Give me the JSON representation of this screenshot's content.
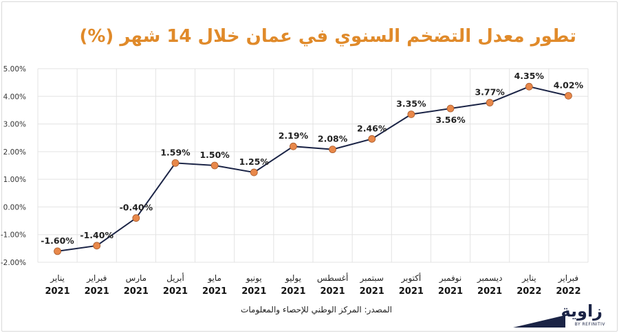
{
  "title": "تطور معدل التضخم السنوي في عمان خلال 14 شهر (%)",
  "source": "المصدر:  المركز الوطني للإحصاء والمعلومات",
  "logo": {
    "word": "زاوية",
    "sub": "BY REFINITIV"
  },
  "colors": {
    "line": "#1b2446",
    "marker": "#e8884a",
    "title": "#e08a2a"
  },
  "chart_data": {
    "type": "line",
    "title": "تطور معدل التضخم السنوي في عمان خلال 14 شهر (%)",
    "categories": [
      [
        "يناير",
        "2021"
      ],
      [
        "فبراير",
        "2021"
      ],
      [
        "مارس",
        "2021"
      ],
      [
        "أبريل",
        "2021"
      ],
      [
        "مايو",
        "2021"
      ],
      [
        "يونيو",
        "2021"
      ],
      [
        "يوليو",
        "2021"
      ],
      [
        "أغسطس",
        "2021"
      ],
      [
        "سبتمبر",
        "2021"
      ],
      [
        "أكتوبر",
        "2021"
      ],
      [
        "نوفمبر",
        "2021"
      ],
      [
        "ديسمبر",
        "2021"
      ],
      [
        "يناير",
        "2022"
      ],
      [
        "فبراير",
        "2022"
      ]
    ],
    "values": [
      -1.6,
      -1.4,
      -0.4,
      1.59,
      1.5,
      1.25,
      2.19,
      2.08,
      2.46,
      3.35,
      3.56,
      3.77,
      4.35,
      4.02
    ],
    "data_labels": [
      "-1.60%",
      "-1.40%",
      "-0.40%",
      "1.59%",
      "1.50%",
      "1.25%",
      "2.19%",
      "2.08%",
      "2.46%",
      "3.35%",
      "3.56%",
      "3.77%",
      "4.35%",
      "4.02%"
    ],
    "label_position": [
      "above",
      "above",
      "above",
      "above",
      "above",
      "above",
      "above",
      "above",
      "above",
      "above",
      "below",
      "above",
      "above",
      "above"
    ],
    "ylim": [
      -2,
      5
    ],
    "yticks": [
      -2,
      -1,
      0,
      1,
      2,
      3,
      4,
      5
    ],
    "ytick_labels": [
      "-2.00%",
      "-1.00%",
      "0.00%",
      "1.00%",
      "2.00%",
      "3.00%",
      "4.00%",
      "5.00%"
    ],
    "grid": true
  }
}
